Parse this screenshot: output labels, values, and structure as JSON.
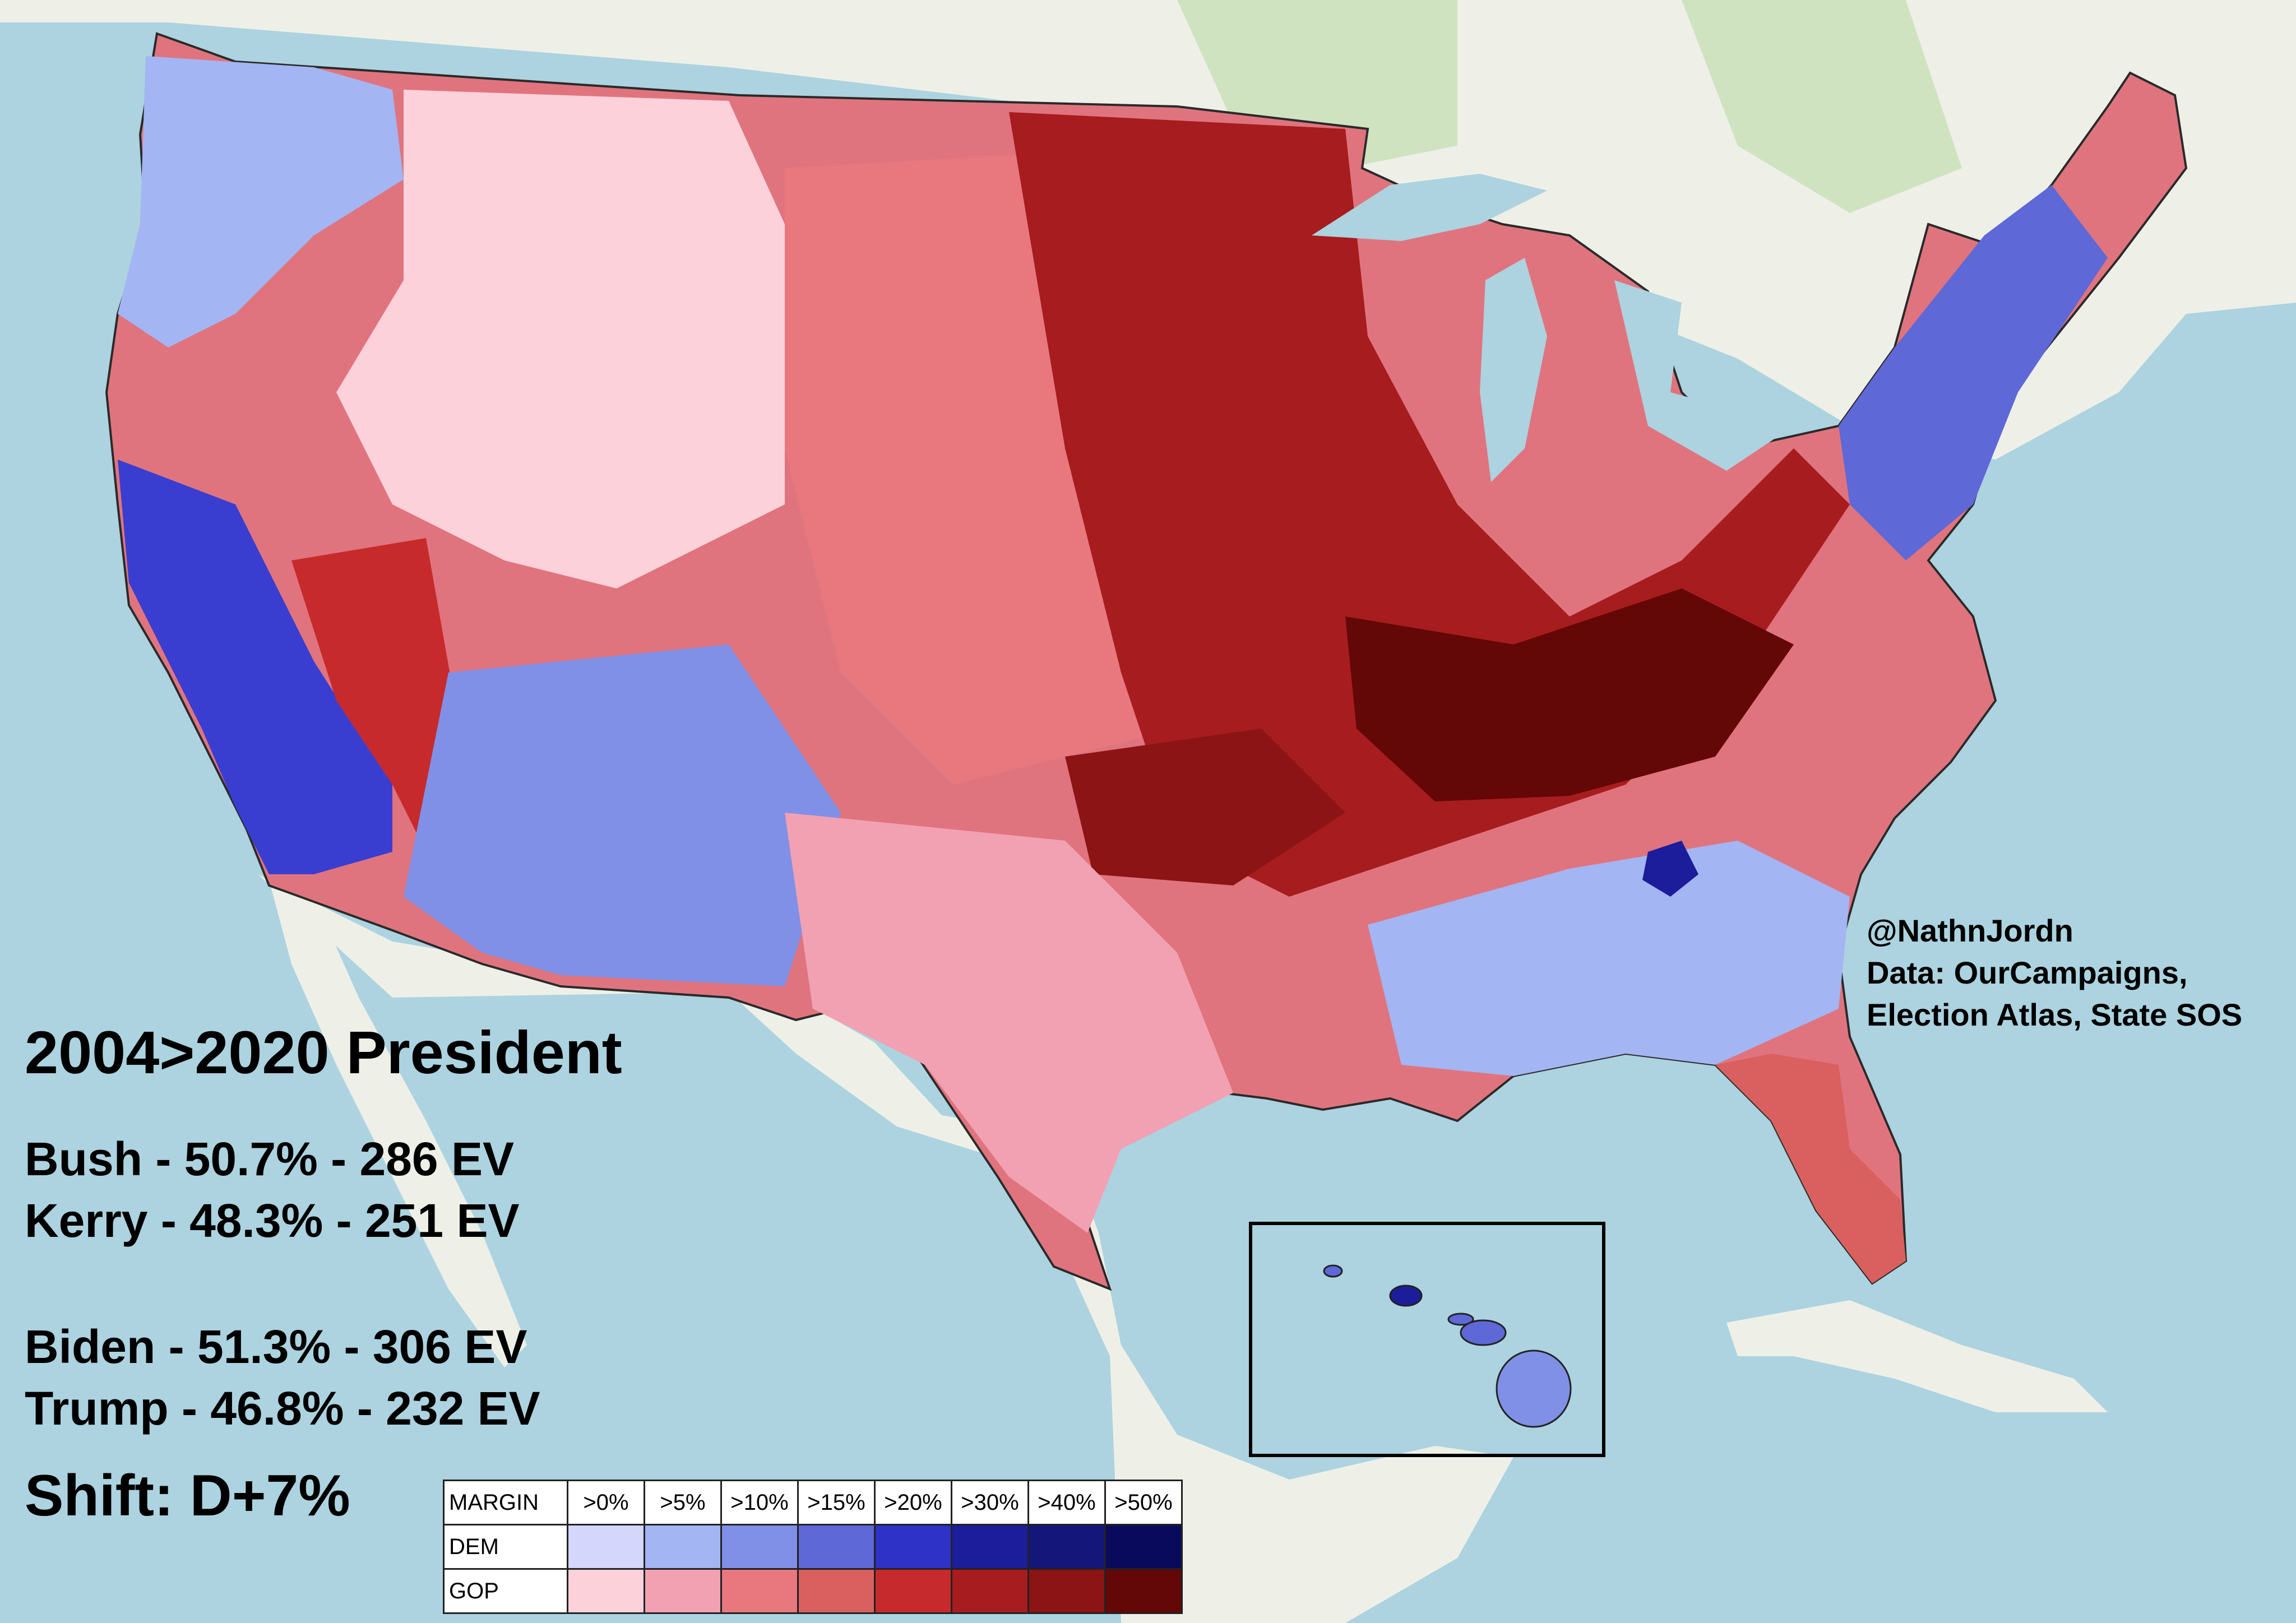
{
  "map": {
    "type": "county-margin-shift-choropleth",
    "region": "United States (contiguous) with Hawaii inset",
    "colors": {
      "ocean": "#acd3df",
      "land_basemap": "#eef0e8",
      "forest": "#cfe3c0",
      "county_border": "#2a2a2a"
    }
  },
  "title": "2004>2020 President",
  "results": [
    {
      "label": "Bush - 50.7% - 286 EV"
    },
    {
      "label": "Kerry - 48.3% - 251 EV"
    },
    {
      "label": "Biden - 51.3% - 306 EV"
    },
    {
      "label": "Trump - 46.8% - 232 EV"
    }
  ],
  "shift": "Shift: D+7%",
  "credit": {
    "author": "@NathnJordn",
    "data_line1": "Data: OurCampaigns,",
    "data_line2": "Election Atlas, State SOS"
  },
  "legend": {
    "header": "MARGIN",
    "bins": [
      ">0%",
      ">5%",
      ">10%",
      ">15%",
      ">20%",
      ">30%",
      ">40%",
      ">50%"
    ],
    "rows": [
      {
        "label": "DEM",
        "colors": [
          "#d4d7fb",
          "#a3b5f2",
          "#8090e6",
          "#5e68d6",
          "#2e32c6",
          "#1c1d9a",
          "#141679",
          "#0a0a5c"
        ]
      },
      {
        "label": "GOP",
        "colors": [
          "#fcd1da",
          "#f2a1b2",
          "#e8787e",
          "#d9605e",
          "#c72a2c",
          "#a71c1e",
          "#8c1414",
          "#630707"
        ]
      }
    ]
  }
}
